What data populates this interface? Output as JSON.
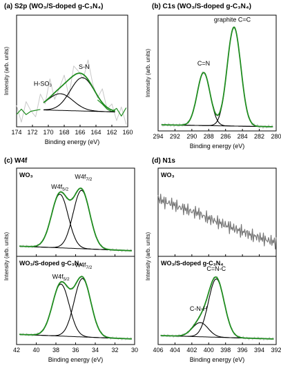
{
  "colors": {
    "fit": "#1f8c1f",
    "data": "#c8c8c8",
    "data_n1s_wo3": "#777777",
    "component": "#000000"
  },
  "chart_data": [
    {
      "id": "a",
      "type": "line",
      "title": "(a) S2p (WO₃/S-doped g-C₃N₄)",
      "xlabel": "Binding energy (eV)",
      "ylabel": "Intensity (arb. units)",
      "xlim": [
        174,
        160
      ],
      "xticks": [
        174,
        172,
        170,
        168,
        166,
        164,
        162,
        160
      ],
      "annotations": [
        {
          "text": "H-SO₃",
          "x": 170.7
        },
        {
          "text": "S-N",
          "x": 165.5
        }
      ],
      "background": {
        "x": [
          174,
          160
        ],
        "y": [
          0.05,
          0.01
        ]
      },
      "peaks": [
        {
          "center": 168.5,
          "height": 0.22,
          "fwhm": 3.8
        },
        {
          "center": 165.7,
          "height": 0.44,
          "fwhm": 3.6
        }
      ],
      "raw": {
        "x": [
          174,
          173.4,
          172.8,
          172.2,
          171.6,
          171,
          170.4,
          169.8,
          169.2,
          168.6,
          168,
          167.4,
          166.8,
          166.2,
          165.6,
          165,
          164.4,
          163.8,
          163.2,
          162.6,
          162,
          161.4,
          160.8,
          160.2
        ],
        "y": [
          0.1,
          -0.12,
          0.15,
          0.03,
          -0.05,
          0.25,
          0.12,
          0.45,
          0.18,
          0.33,
          0.5,
          0.22,
          0.62,
          0.55,
          0.45,
          0.7,
          0.38,
          0.2,
          0.32,
          0.05,
          0.12,
          -0.1,
          0.08,
          -0.15
        ]
      },
      "fit": {
        "x": [
          174,
          173.4,
          172.8,
          172.2,
          171.6,
          171,
          170.4,
          169.8,
          169.2,
          168.6,
          168,
          167.4,
          166.8,
          166.2,
          165.6,
          165,
          164.4,
          163.8,
          163.2,
          162.6,
          162,
          161.4,
          160.8,
          160.2
        ],
        "y": [
          -0.02,
          0.06,
          -0.04,
          0.05,
          0.0,
          0.09,
          0.12,
          0.2,
          0.25,
          0.28,
          0.34,
          0.42,
          0.5,
          0.53,
          0.54,
          0.45,
          0.32,
          0.2,
          0.1,
          0.06,
          0.02,
          0.05,
          -0.02,
          0.04
        ]
      }
    },
    {
      "id": "b",
      "type": "line",
      "title": "(b) C1s (WO₃/S-doped g-C₃N₄)",
      "xlabel": "Binding energy (eV)",
      "ylabel": "Intensity (arb. units)",
      "xlim": [
        294,
        280
      ],
      "xticks": [
        294,
        292,
        290,
        288,
        286,
        284,
        282,
        280
      ],
      "annotations": [
        {
          "text": "C=N",
          "x": 288.6
        },
        {
          "text": "graphite C=C",
          "x": 285.2
        }
      ],
      "background": {
        "x": [
          294,
          280
        ],
        "y": [
          0.02,
          0.0
        ]
      },
      "peaks": [
        {
          "center": 288.6,
          "height": 0.52,
          "fwhm": 1.8
        },
        {
          "center": 285.0,
          "height": 0.97,
          "fwhm": 1.9
        }
      ]
    },
    {
      "id": "c",
      "type": "line",
      "title": "(c) W4f",
      "xlabel": "Binding energy (eV)",
      "ylabel": "Intensity (arb. units)",
      "xlim": [
        42,
        30
      ],
      "xticks": [
        42,
        40,
        38,
        36,
        34,
        32,
        30
      ],
      "subplots": [
        {
          "label": "WO₃",
          "annotations": [
            {
              "text": "W4f",
              "sub": "5/2",
              "x": 37.6
            },
            {
              "text": "W4f",
              "sub": "7/2",
              "x": 35.2
            }
          ],
          "background": {
            "x": [
              42,
              30
            ],
            "y": [
              0.06,
              0.0
            ]
          },
          "peaks": [
            {
              "center": 37.6,
              "height": 0.68,
              "fwhm": 2.0
            },
            {
              "center": 35.4,
              "height": 0.74,
              "fwhm": 2.0
            }
          ]
        },
        {
          "label": "WO₃/S-doped g-C₃N₄",
          "annotations": [
            {
              "text": "W4f",
              "sub": "5/2",
              "x": 37.5
            },
            {
              "text": "W4f",
              "sub": "7/2",
              "x": 35.2
            }
          ],
          "background": {
            "x": [
              42,
              30
            ],
            "y": [
              0.06,
              0.0
            ]
          },
          "peaks": [
            {
              "center": 37.5,
              "height": 0.66,
              "fwhm": 2.0
            },
            {
              "center": 35.3,
              "height": 0.74,
              "fwhm": 2.0
            }
          ]
        }
      ]
    },
    {
      "id": "d",
      "type": "line",
      "title": "(d) N1s",
      "xlabel": "Binding energy (eV)",
      "ylabel": "Intensity (arb. units)",
      "xlim": [
        406,
        392
      ],
      "xticks": [
        406,
        404,
        402,
        400,
        398,
        396,
        394,
        392
      ],
      "subplots": [
        {
          "label": "WO₃",
          "raw": {
            "x": [
              406,
              405.2,
              404.4,
              403.6,
              402.8,
              402,
              401.2,
              400.4,
              399.6,
              398.8,
              398,
              397.2,
              396.4,
              395.6,
              394.8,
              394,
              393.2,
              392.4,
              392
            ],
            "y": [
              0.78,
              0.72,
              0.7,
              0.65,
              0.62,
              0.58,
              0.56,
              0.5,
              0.46,
              0.42,
              0.38,
              0.34,
              0.3,
              0.27,
              0.22,
              0.2,
              0.16,
              0.14,
              0.12
            ]
          }
        },
        {
          "label": "WO₃/S-doped g-C₃N₄",
          "annotations": [
            {
              "text": "C-N-H",
              "x": 401.2
            },
            {
              "text": "C=N-C",
              "x": 399.1
            }
          ],
          "background": {
            "x": [
              406,
              392
            ],
            "y": [
              0.04,
              0.0
            ]
          },
          "peaks": [
            {
              "center": 401.0,
              "height": 0.16,
              "fwhm": 2.2
            },
            {
              "center": 399.1,
              "height": 0.66,
              "fwhm": 2.2
            }
          ]
        }
      ]
    }
  ]
}
